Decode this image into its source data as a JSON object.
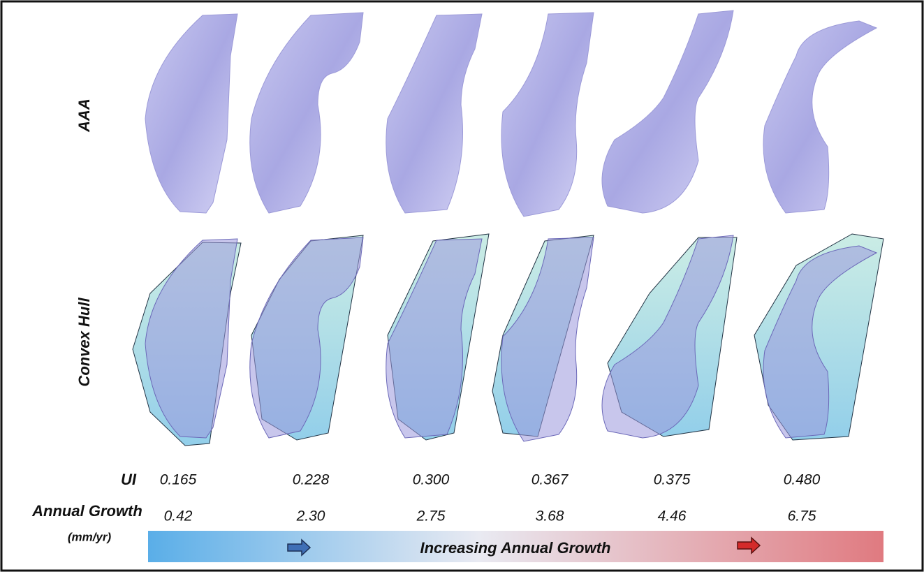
{
  "row_labels": {
    "aaa": "AAA",
    "convex_hull": "Convex Hull"
  },
  "metrics": [
    {
      "label": "UI",
      "values": [
        "0.165",
        "0.228",
        "0.300",
        "0.367",
        "0.375",
        "0.480"
      ]
    },
    {
      "label": "Annual Growth",
      "unit": "(mm/yr)",
      "values": [
        "0.42",
        "2.30",
        "2.75",
        "3.68",
        "4.46",
        "6.75"
      ]
    }
  ],
  "growth_bar": {
    "label": "Increasing Annual Growth"
  }
}
